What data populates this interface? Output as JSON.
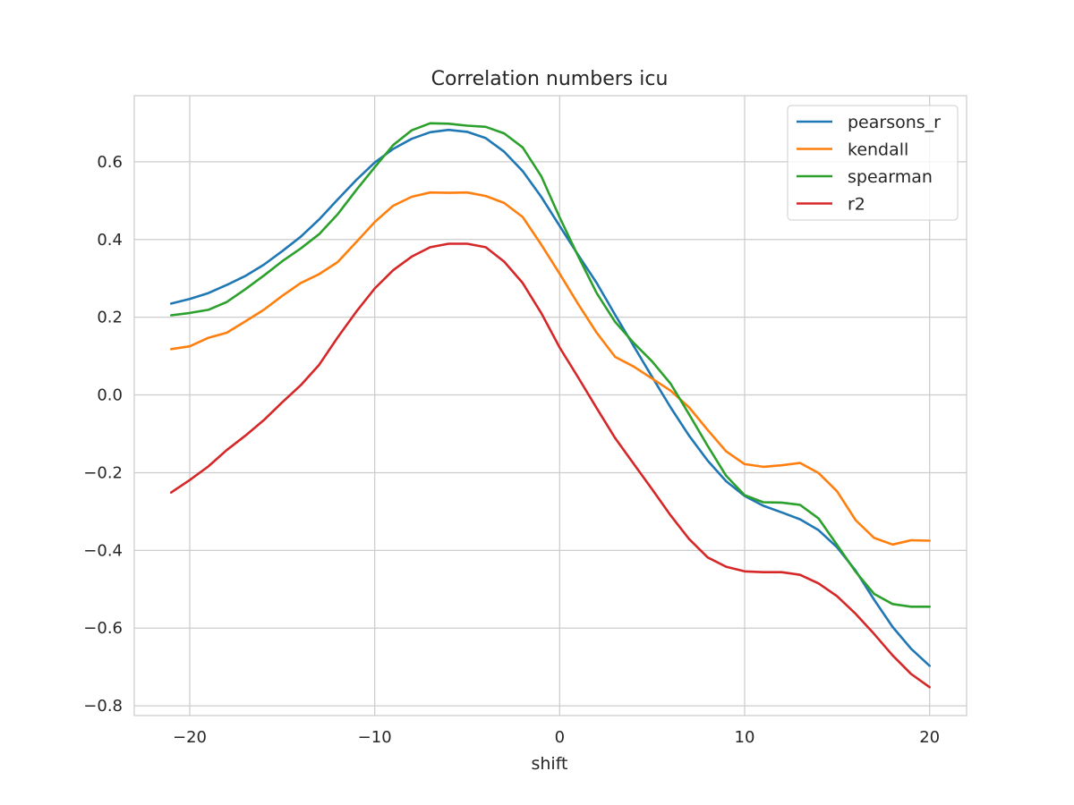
{
  "chart_data": {
    "type": "line",
    "title": "Correlation numbers icu",
    "xlabel": "shift",
    "ylabel": "",
    "xlim": [
      -23,
      22
    ],
    "ylim": [
      -0.825,
      0.77
    ],
    "xticks": [
      -20,
      -10,
      0,
      10,
      20
    ],
    "yticks": [
      0.6,
      0.4,
      0.2,
      0.0,
      -0.2,
      -0.4,
      -0.6,
      -0.8
    ],
    "xtick_labels": [
      "−20",
      "−10",
      "0",
      "10",
      "20"
    ],
    "ytick_labels": [
      "0.6",
      "0.4",
      "0.2",
      "0.0",
      "−0.2",
      "−0.4",
      "−0.6",
      "−0.8"
    ],
    "grid": true,
    "legend_position": "top-right",
    "x": [
      -21,
      -20,
      -19,
      -18,
      -17,
      -16,
      -15,
      -14,
      -13,
      -12,
      -11,
      -10,
      -9,
      -8,
      -7,
      -6,
      -5,
      -4,
      -3,
      -2,
      -1,
      0,
      1,
      2,
      3,
      4,
      5,
      6,
      7,
      8,
      9,
      10,
      11,
      12,
      13,
      14,
      15,
      16,
      17,
      18,
      19,
      20
    ],
    "series": [
      {
        "name": "pearsons_r",
        "color": "#1f77b4",
        "values": [
          0.235,
          0.247,
          0.262,
          0.283,
          0.306,
          0.335,
          0.37,
          0.407,
          0.452,
          0.503,
          0.553,
          0.598,
          0.633,
          0.659,
          0.676,
          0.682,
          0.677,
          0.661,
          0.626,
          0.576,
          0.51,
          0.435,
          0.36,
          0.288,
          0.206,
          0.126,
          0.046,
          -0.032,
          -0.105,
          -0.169,
          -0.222,
          -0.26,
          -0.285,
          -0.302,
          -0.32,
          -0.348,
          -0.392,
          -0.452,
          -0.527,
          -0.597,
          -0.653,
          -0.697
        ]
      },
      {
        "name": "kendall",
        "color": "#ff7f0e",
        "values": [
          0.118,
          0.125,
          0.147,
          0.16,
          0.189,
          0.219,
          0.255,
          0.288,
          0.311,
          0.342,
          0.393,
          0.445,
          0.487,
          0.51,
          0.521,
          0.52,
          0.521,
          0.512,
          0.494,
          0.458,
          0.387,
          0.312,
          0.234,
          0.16,
          0.098,
          0.073,
          0.042,
          0.011,
          -0.032,
          -0.09,
          -0.145,
          -0.178,
          -0.185,
          -0.181,
          -0.175,
          -0.201,
          -0.248,
          -0.322,
          -0.368,
          -0.385,
          -0.374,
          -0.375
        ]
      },
      {
        "name": "spearman",
        "color": "#2ca02c",
        "values": [
          0.205,
          0.211,
          0.219,
          0.239,
          0.272,
          0.307,
          0.344,
          0.377,
          0.414,
          0.465,
          0.527,
          0.586,
          0.643,
          0.681,
          0.699,
          0.698,
          0.693,
          0.69,
          0.673,
          0.637,
          0.563,
          0.457,
          0.357,
          0.262,
          0.188,
          0.134,
          0.086,
          0.029,
          -0.05,
          -0.131,
          -0.208,
          -0.258,
          -0.276,
          -0.277,
          -0.283,
          -0.318,
          -0.386,
          -0.455,
          -0.512,
          -0.538,
          -0.545,
          -0.545
        ]
      },
      {
        "name": "r2",
        "color": "#d62728",
        "values": [
          -0.251,
          -0.219,
          -0.184,
          -0.142,
          -0.105,
          -0.065,
          -0.019,
          0.025,
          0.078,
          0.148,
          0.214,
          0.274,
          0.321,
          0.356,
          0.38,
          0.389,
          0.389,
          0.38,
          0.343,
          0.288,
          0.211,
          0.122,
          0.045,
          -0.034,
          -0.111,
          -0.177,
          -0.243,
          -0.31,
          -0.371,
          -0.418,
          -0.442,
          -0.454,
          -0.456,
          -0.456,
          -0.463,
          -0.485,
          -0.518,
          -0.563,
          -0.615,
          -0.67,
          -0.718,
          -0.752
        ]
      }
    ]
  }
}
